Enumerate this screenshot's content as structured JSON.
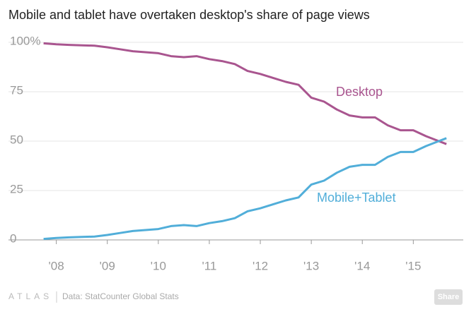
{
  "chart_data": {
    "type": "line",
    "title": "Mobile and tablet have overtaken desktop's share of page views",
    "x": [
      2007.75,
      2008.0,
      2008.25,
      2008.5,
      2008.75,
      2009.0,
      2009.25,
      2009.5,
      2009.75,
      2010.0,
      2010.25,
      2010.5,
      2010.75,
      2011.0,
      2011.25,
      2011.5,
      2011.75,
      2012.0,
      2012.25,
      2012.5,
      2012.75,
      2013.0,
      2013.25,
      2013.5,
      2013.75,
      2014.0,
      2014.25,
      2014.5,
      2014.75,
      2015.0,
      2015.25,
      2015.5,
      2015.65
    ],
    "series": [
      {
        "name": "Desktop",
        "color": "#a9558f",
        "values": [
          99.5,
          99,
          98.7,
          98.5,
          98.3,
          97.5,
          96.5,
          95.5,
          95,
          94.5,
          93,
          92.5,
          93,
          91.5,
          90.5,
          89,
          85.5,
          84,
          82,
          80,
          78.5,
          72,
          70,
          66,
          63,
          62,
          62,
          58,
          55.5,
          55.5,
          52.5,
          50,
          48.5
        ]
      },
      {
        "name": "Mobile+Tablet",
        "color": "#51aed9",
        "values": [
          0.5,
          1,
          1.3,
          1.5,
          1.7,
          2.5,
          3.5,
          4.5,
          5,
          5.5,
          7,
          7.5,
          7,
          8.5,
          9.5,
          11,
          14.5,
          16,
          18,
          20,
          21.5,
          28,
          30,
          34,
          37,
          38,
          38,
          42,
          44.5,
          44.5,
          47.5,
          50,
          51.5
        ]
      }
    ],
    "xlim": [
      2007.7,
      2015.98
    ],
    "xticks": [
      {
        "value": 2008,
        "label": "'08"
      },
      {
        "value": 2009,
        "label": "'09"
      },
      {
        "value": 2010,
        "label": "'10"
      },
      {
        "value": 2011,
        "label": "'11"
      },
      {
        "value": 2012,
        "label": "'12"
      },
      {
        "value": 2013,
        "label": "'13"
      },
      {
        "value": 2014,
        "label": "'14"
      },
      {
        "value": 2015,
        "label": "'15"
      }
    ],
    "ylim": [
      0,
      100
    ],
    "yticks": [
      0,
      25,
      50,
      75,
      {
        "value": 100,
        "label": "100%"
      }
    ],
    "grid": true,
    "source": "Data: StatCounter Global Stats",
    "brand": "ATLAS",
    "share": "Share"
  }
}
